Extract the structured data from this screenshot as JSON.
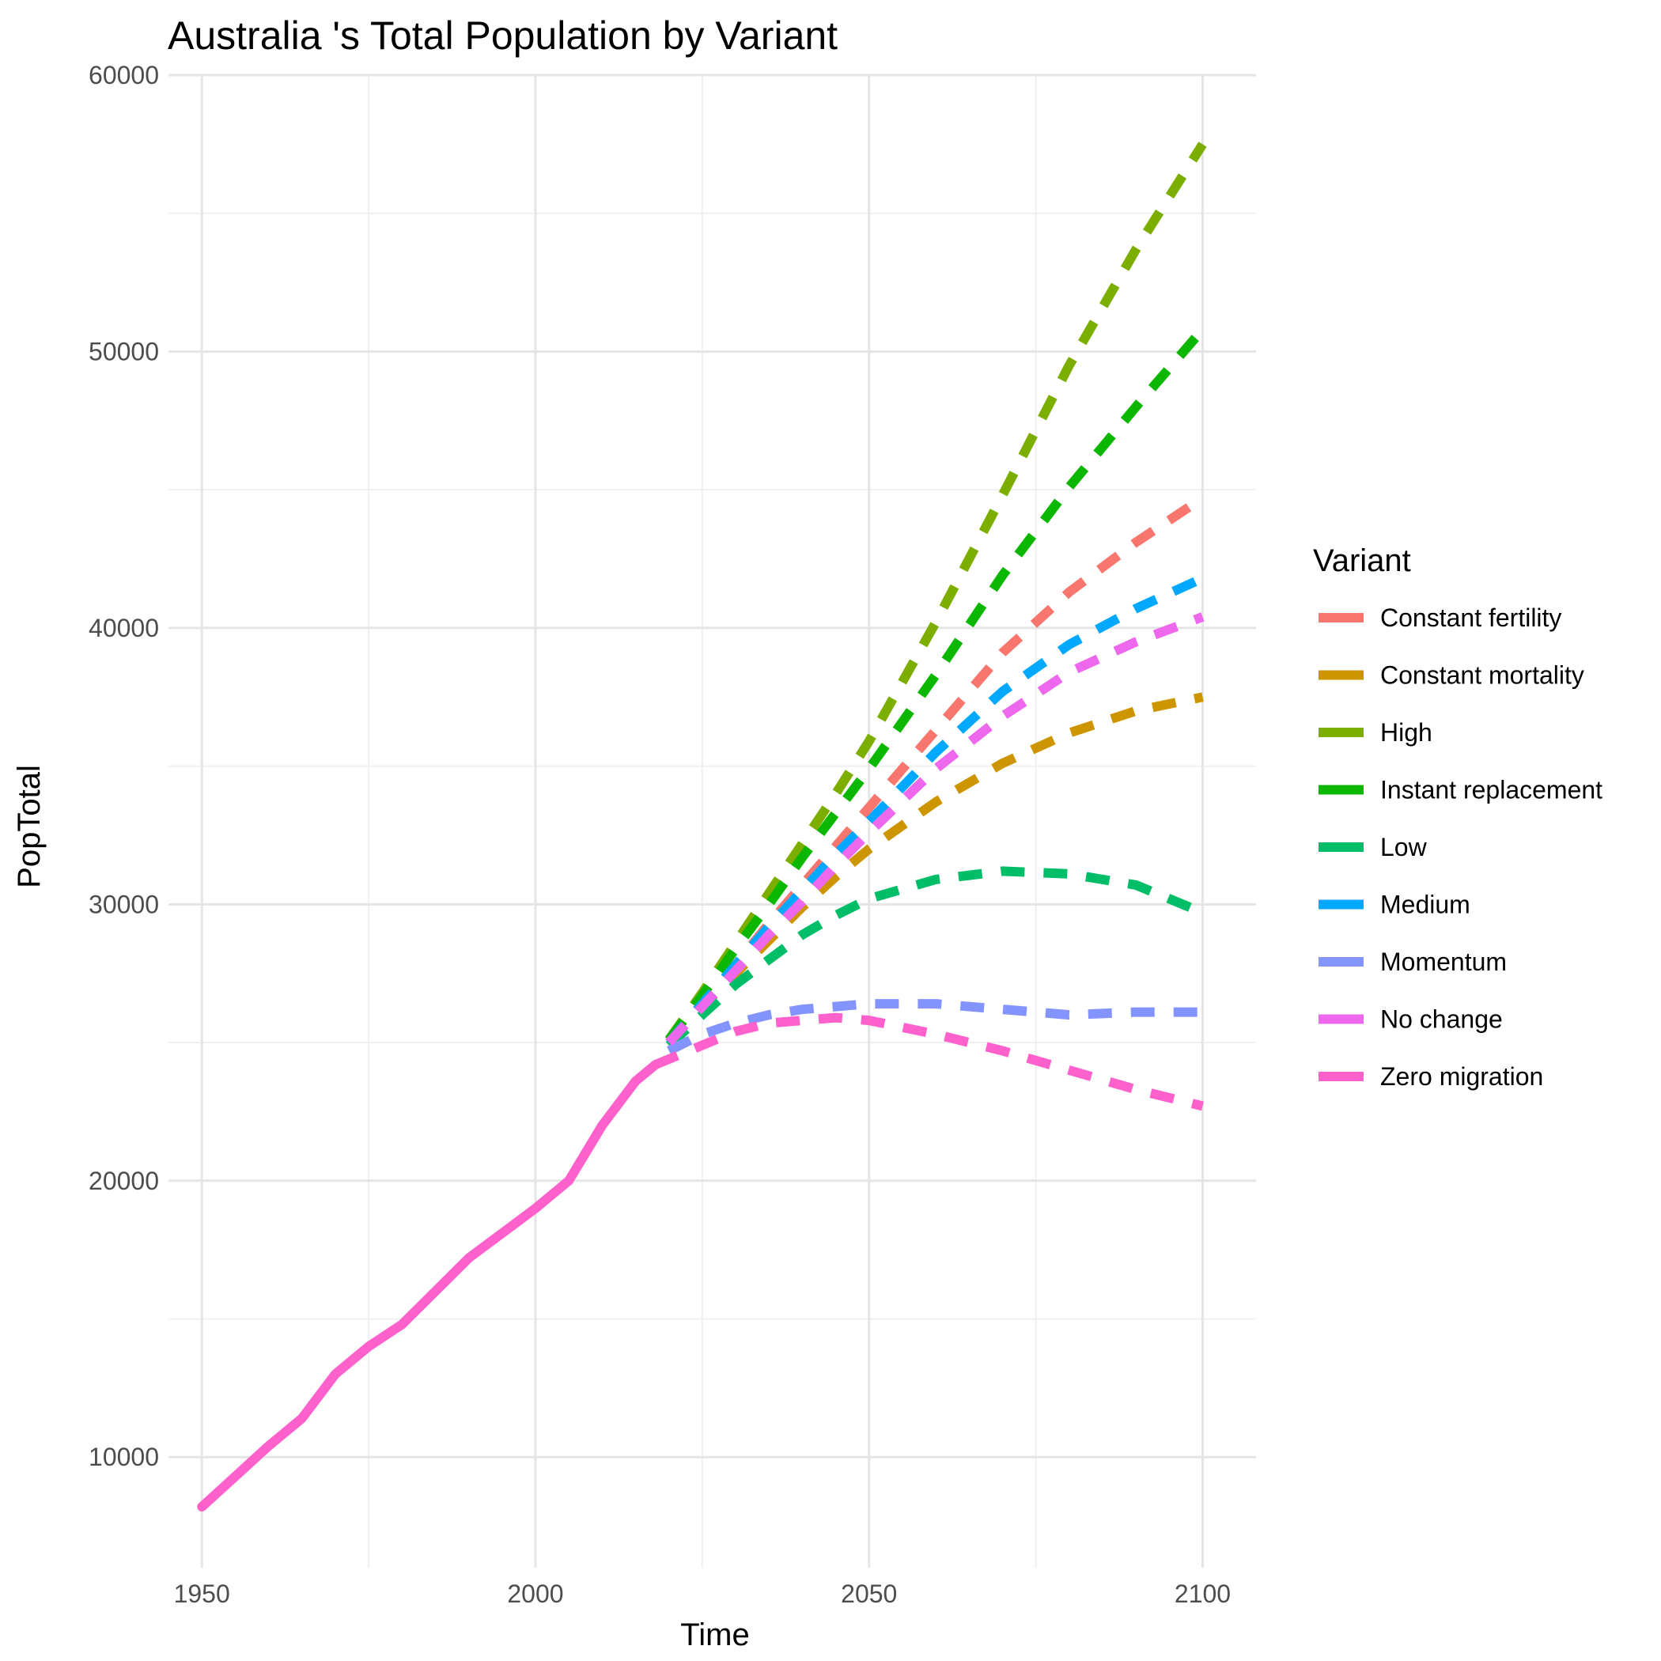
{
  "chart_data": {
    "type": "line",
    "title": "Australia 's Total Population by Variant",
    "xlabel": "Time",
    "ylabel": "PopTotal",
    "xlim": [
      1945,
      2108
    ],
    "ylim": [
      6000,
      60000
    ],
    "x_ticks": [
      1950,
      2000,
      2050,
      2100
    ],
    "y_ticks": [
      10000,
      20000,
      30000,
      40000,
      50000,
      60000
    ],
    "grid": true,
    "legend": {
      "title": "Variant",
      "position": "right"
    },
    "historical": {
      "x": [
        1950,
        1955,
        1960,
        1965,
        1970,
        1975,
        1980,
        1985,
        1990,
        1995,
        2000,
        2005,
        2010,
        2015,
        2018
      ],
      "y": [
        8200,
        9300,
        10400,
        11400,
        13000,
        14000,
        14800,
        16000,
        17200,
        18100,
        19000,
        20000,
        22000,
        23600,
        24200
      ]
    },
    "series": [
      {
        "name": "Constant fertility",
        "color": "#F8766D",
        "x": [
          2020,
          2025,
          2030,
          2035,
          2040,
          2045,
          2050,
          2060,
          2070,
          2080,
          2090,
          2100
        ],
        "y": [
          25000,
          26400,
          27800,
          29300,
          30700,
          32100,
          33500,
          36300,
          39100,
          41300,
          43100,
          44700
        ]
      },
      {
        "name": "Constant mortality",
        "color": "#CD9600",
        "x": [
          2020,
          2025,
          2030,
          2035,
          2040,
          2045,
          2050,
          2060,
          2070,
          2080,
          2090,
          2100
        ],
        "y": [
          25000,
          26300,
          27500,
          28700,
          29900,
          31000,
          32000,
          33700,
          35100,
          36200,
          37000,
          37500
        ]
      },
      {
        "name": "High",
        "color": "#7CAE00",
        "x": [
          2020,
          2025,
          2030,
          2035,
          2040,
          2045,
          2050,
          2060,
          2070,
          2080,
          2090,
          2100
        ],
        "y": [
          25100,
          26800,
          28600,
          30400,
          32200,
          34000,
          35900,
          40200,
          44800,
          49500,
          53700,
          57500
        ]
      },
      {
        "name": "Instant replacement",
        "color": "#0CB702",
        "x": [
          2020,
          2025,
          2030,
          2035,
          2040,
          2045,
          2050,
          2060,
          2070,
          2080,
          2090,
          2100
        ],
        "y": [
          25100,
          26700,
          28400,
          30000,
          31700,
          33300,
          34900,
          38300,
          41900,
          45100,
          48000,
          50800
        ]
      },
      {
        "name": "Low",
        "color": "#00BE67",
        "x": [
          2020,
          2025,
          2030,
          2035,
          2040,
          2045,
          2050,
          2060,
          2070,
          2080,
          2090,
          2100
        ],
        "y": [
          24900,
          26000,
          27100,
          28000,
          28900,
          29600,
          30200,
          30900,
          31200,
          31100,
          30700,
          29700
        ]
      },
      {
        "name": "Medium",
        "color": "#00A9FF",
        "x": [
          2020,
          2025,
          2030,
          2035,
          2040,
          2045,
          2050,
          2060,
          2070,
          2080,
          2090,
          2100
        ],
        "y": [
          25000,
          26400,
          27800,
          29200,
          30500,
          31800,
          33000,
          35500,
          37700,
          39400,
          40700,
          41800
        ]
      },
      {
        "name": "Momentum",
        "color": "#8494FF",
        "x": [
          2020,
          2025,
          2030,
          2035,
          2040,
          2045,
          2050,
          2055,
          2060,
          2070,
          2080,
          2090,
          2100
        ],
        "y": [
          24700,
          25300,
          25700,
          26000,
          26200,
          26300,
          26400,
          26400,
          26400,
          26200,
          26000,
          26100,
          26100
        ]
      },
      {
        "name": "No change",
        "color": "#ED68ED",
        "x": [
          2020,
          2025,
          2030,
          2035,
          2040,
          2045,
          2050,
          2060,
          2070,
          2080,
          2090,
          2100
        ],
        "y": [
          25000,
          26300,
          27600,
          28900,
          30100,
          31400,
          32600,
          34900,
          36800,
          38400,
          39500,
          40400
        ]
      },
      {
        "name": "Zero migration",
        "color": "#FF61CC",
        "x": [
          2018,
          2025,
          2030,
          2035,
          2040,
          2045,
          2050,
          2060,
          2070,
          2080,
          2090,
          2100
        ],
        "y": [
          24200,
          24900,
          25400,
          25700,
          25800,
          25900,
          25800,
          25300,
          24700,
          24000,
          23300,
          22700
        ]
      }
    ]
  }
}
